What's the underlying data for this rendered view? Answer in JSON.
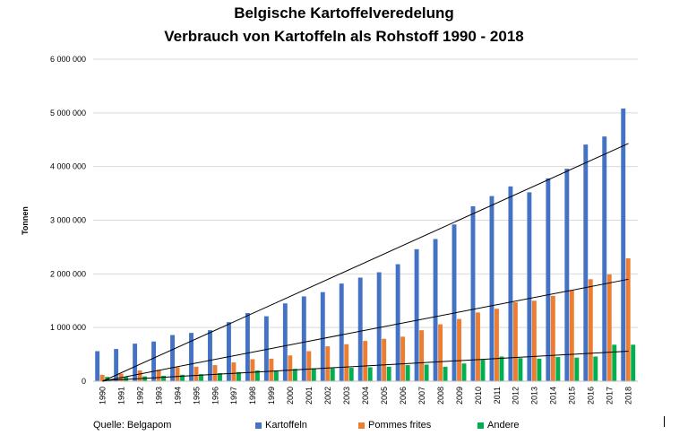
{
  "chart_data": {
    "type": "bar",
    "title": "Belgische Kartoffelveredelung",
    "subtitle": "Verbrauch von Kartoffeln als Rohstoff 1990 - 2018",
    "ylabel": "Tonnen",
    "xlabel": "",
    "ylim": [
      0,
      6000000
    ],
    "yticks": [
      "0",
      "1 000 000",
      "2 000 000",
      "3 000 000",
      "4 000 000",
      "5 000 000",
      "6 000 000"
    ],
    "ytick_values": [
      0,
      1000000,
      2000000,
      3000000,
      4000000,
      5000000,
      6000000
    ],
    "grid": true,
    "legend_position": "bottom",
    "categories": [
      "1990",
      "1991",
      "1992",
      "1993",
      "1994",
      "1995",
      "1996",
      "1997",
      "1998",
      "1999",
      "2000",
      "2001",
      "2002",
      "2003",
      "2004",
      "2005",
      "2006",
      "2007",
      "2008",
      "2009",
      "2010",
      "2011",
      "2012",
      "2013",
      "2014",
      "2015",
      "2016",
      "2017",
      "2018"
    ],
    "series": [
      {
        "name": "Kartoffeln",
        "color": "#4472c4",
        "values": [
          560000,
          600000,
          700000,
          740000,
          860000,
          900000,
          950000,
          1100000,
          1270000,
          1210000,
          1450000,
          1580000,
          1660000,
          1820000,
          1930000,
          2030000,
          2180000,
          2460000,
          2650000,
          2920000,
          3260000,
          3450000,
          3630000,
          3520000,
          3780000,
          3960000,
          4410000,
          4560000,
          5080000
        ]
      },
      {
        "name": "Pommes frites",
        "color": "#ed7d31",
        "values": [
          120000,
          140000,
          200000,
          210000,
          260000,
          270000,
          300000,
          350000,
          410000,
          420000,
          480000,
          560000,
          650000,
          690000,
          750000,
          790000,
          830000,
          950000,
          1060000,
          1160000,
          1280000,
          1350000,
          1470000,
          1500000,
          1590000,
          1690000,
          1900000,
          1990000,
          2290000
        ]
      },
      {
        "name": "Andere",
        "color": "#00b050",
        "values": [
          80000,
          80000,
          90000,
          100000,
          120000,
          130000,
          150000,
          170000,
          200000,
          200000,
          230000,
          240000,
          240000,
          250000,
          260000,
          270000,
          300000,
          310000,
          270000,
          330000,
          400000,
          460000,
          430000,
          420000,
          450000,
          440000,
          460000,
          680000,
          680000
        ]
      }
    ],
    "trendlines": [
      {
        "series": "Kartoffeln",
        "color": "#000000",
        "start": 0,
        "end": 4430000
      },
      {
        "series": "Pommes frites",
        "color": "#000000",
        "start": 0,
        "end": 1900000
      },
      {
        "series": "Andere",
        "color": "#000000",
        "start": 10000,
        "end": 560000
      }
    ]
  },
  "footer": {
    "source": "Quelle: Belgapom"
  }
}
